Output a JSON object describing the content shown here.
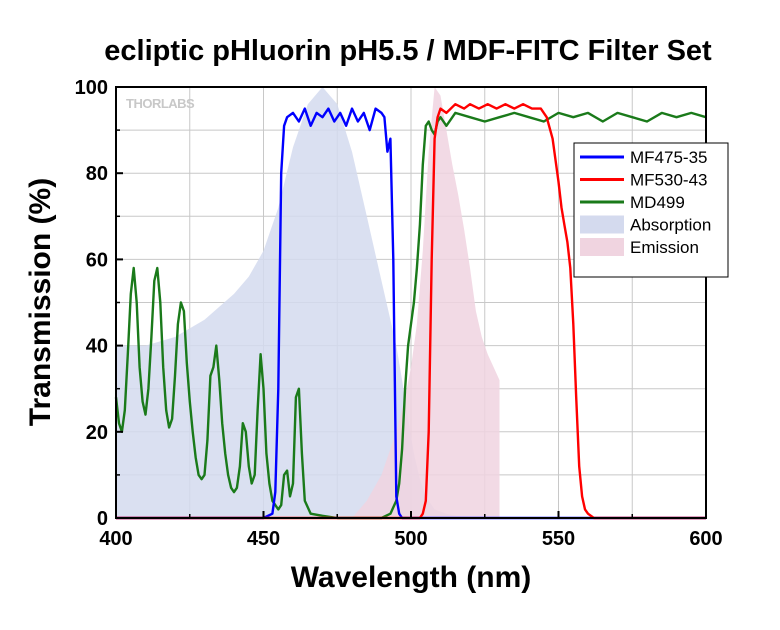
{
  "chart_data": {
    "type": "line",
    "title": "ecliptic pHluorin pH5.5 / MDF-FITC Filter Set",
    "xlabel": "Wavelength (nm)",
    "ylabel": "Transmission (%)",
    "xlim": [
      400,
      600
    ],
    "ylim": [
      0,
      100
    ],
    "xticks": [
      "400",
      "450",
      "500",
      "550",
      "600"
    ],
    "yticks": [
      "0",
      "20",
      "40",
      "60",
      "80",
      "100"
    ],
    "grid": true,
    "legend_position": "right",
    "watermark": "THORLABS",
    "colors": {
      "MF475-35": "#0000ff",
      "MF530-43": "#ff0000",
      "MD499": "#1a7a1a",
      "Absorption": "#d4daee",
      "Emission": "#f0d4e0"
    },
    "series": [
      {
        "name": "MF475-35",
        "kind": "line",
        "x": [
          400,
          450,
          453,
          454,
          455,
          456,
          457,
          458,
          460,
          462,
          464,
          466,
          468,
          470,
          472,
          474,
          476,
          478,
          480,
          482,
          484,
          486,
          488,
          490,
          491,
          492,
          493,
          494,
          495,
          496,
          497,
          498,
          600
        ],
        "y": [
          0,
          0,
          1,
          6,
          30,
          80,
          91,
          93,
          94,
          92,
          95,
          91,
          94,
          93,
          95,
          92,
          94,
          91,
          95,
          92,
          94,
          90,
          95,
          94,
          93,
          85,
          88,
          60,
          5,
          1,
          0,
          0,
          0
        ]
      },
      {
        "name": "MF530-43",
        "kind": "line",
        "x": [
          400,
          503,
          504,
          505,
          506,
          507,
          508,
          509,
          510,
          512,
          515,
          518,
          520,
          523,
          526,
          529,
          532,
          535,
          538,
          541,
          544,
          546,
          548,
          550,
          551,
          552,
          553,
          554,
          555,
          556,
          557,
          558,
          559,
          560,
          562,
          600
        ],
        "y": [
          0,
          0,
          1,
          4,
          20,
          60,
          88,
          93,
          95,
          94,
          96,
          95,
          96,
          95,
          96,
          95,
          96,
          95,
          96,
          95,
          95,
          93,
          88,
          78,
          72,
          68,
          64,
          58,
          45,
          28,
          12,
          5,
          2,
          1,
          0,
          0
        ]
      },
      {
        "name": "MD499",
        "kind": "line",
        "x": [
          400,
          401,
          402,
          403,
          404,
          405,
          406,
          407,
          408,
          409,
          410,
          411,
          412,
          413,
          414,
          415,
          416,
          417,
          418,
          419,
          420,
          421,
          422,
          423,
          424,
          425,
          426,
          427,
          428,
          429,
          430,
          431,
          432,
          433,
          434,
          435,
          436,
          437,
          438,
          439,
          440,
          441,
          442,
          443,
          444,
          445,
          446,
          447,
          448,
          449,
          450,
          451,
          452,
          453,
          454,
          455,
          456,
          457,
          458,
          459,
          460,
          461,
          462,
          463,
          464,
          466,
          470,
          475,
          480,
          485,
          490,
          493,
          495,
          496,
          497,
          498,
          499,
          500,
          501,
          502,
          503,
          504,
          505,
          506,
          507,
          508,
          509,
          510,
          512,
          515,
          520,
          525,
          530,
          535,
          540,
          545,
          550,
          555,
          560,
          565,
          570,
          575,
          580,
          585,
          590,
          595,
          600
        ],
        "y": [
          28,
          22,
          20,
          25,
          38,
          52,
          58,
          50,
          35,
          27,
          24,
          30,
          42,
          55,
          58,
          50,
          35,
          25,
          21,
          23,
          33,
          45,
          50,
          48,
          36,
          27,
          20,
          14,
          10,
          9,
          10,
          18,
          33,
          35,
          40,
          32,
          22,
          15,
          10,
          7,
          6,
          7,
          12,
          22,
          20,
          12,
          8,
          10,
          25,
          38,
          30,
          15,
          8,
          4,
          3,
          2,
          3,
          10,
          11,
          5,
          8,
          28,
          30,
          15,
          4,
          1,
          0.5,
          0,
          0,
          0,
          0,
          1,
          4,
          8,
          16,
          30,
          40,
          45,
          50,
          58,
          68,
          82,
          91,
          92,
          90,
          89,
          92,
          93,
          91,
          94,
          93,
          92,
          93,
          94,
          93,
          92,
          94,
          93,
          94,
          92,
          94,
          93,
          92,
          94,
          93,
          94,
          93
        ]
      },
      {
        "name": "Absorption",
        "kind": "area",
        "x": [
          400,
          410,
          420,
          430,
          440,
          445,
          450,
          455,
          460,
          465,
          470,
          475,
          480,
          485,
          490,
          493,
          495,
          497,
          499,
          501,
          503,
          505,
          508,
          512,
          515,
          520,
          525
        ],
        "y": [
          40,
          40,
          42,
          46,
          52,
          56,
          62,
          72,
          86,
          96,
          100,
          96,
          85,
          70,
          55,
          46,
          40,
          32,
          23,
          15,
          9,
          5,
          2,
          1,
          0.5,
          0.2,
          0
        ]
      },
      {
        "name": "Emission",
        "kind": "area",
        "x": [
          480,
          485,
          490,
          495,
          498,
          500,
          502,
          504,
          506,
          508,
          510,
          512,
          514,
          516,
          518,
          520,
          522,
          524,
          526,
          528,
          530
        ],
        "y": [
          0,
          4,
          10,
          20,
          28,
          35,
          45,
          62,
          85,
          100,
          98,
          90,
          82,
          75,
          67,
          58,
          48,
          42,
          38,
          35,
          32
        ]
      }
    ]
  }
}
